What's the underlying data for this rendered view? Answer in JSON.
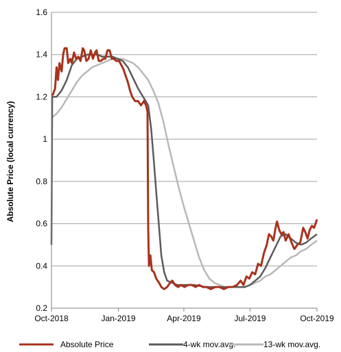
{
  "chart_data": {
    "type": "line",
    "title": "",
    "xlabel": "",
    "ylabel": "Absolute Price (local currency)",
    "ylim": [
      0.2,
      1.6
    ],
    "yticks": [
      "0.2",
      "0.4",
      "0.6",
      "0.8",
      "1",
      "1.2",
      "1.4",
      "1.6"
    ],
    "xlim": [
      "2018-10-01",
      "2019-10-01"
    ],
    "xticks": [
      {
        "label": "Oct-2018",
        "date": "2018-10-01"
      },
      {
        "label": "Jan-2019",
        "date": "2019-01-01"
      },
      {
        "label": "Apr-2019",
        "date": "2019-04-01"
      },
      {
        "label": "Jul-2019",
        "date": "2019-07-01"
      },
      {
        "label": "Oct-2019",
        "date": "2019-10-01"
      }
    ],
    "grid": true,
    "legend_position": "bottom",
    "colors": {
      "absolute": "#a8321c",
      "ma4": "#5a5a5a",
      "ma13": "#b8b8b8",
      "grid": "#a0a0a0"
    },
    "series": [
      {
        "name": "Absolute Price",
        "points": [
          [
            "2018-10-01",
            1.21
          ],
          [
            "2018-10-03",
            1.21
          ],
          [
            "2018-10-06",
            1.24
          ],
          [
            "2018-10-08",
            1.34
          ],
          [
            "2018-10-10",
            1.28
          ],
          [
            "2018-10-12",
            1.36
          ],
          [
            "2018-10-15",
            1.32
          ],
          [
            "2018-10-17",
            1.4
          ],
          [
            "2018-10-19",
            1.43
          ],
          [
            "2018-10-22",
            1.43
          ],
          [
            "2018-10-24",
            1.36
          ],
          [
            "2018-10-27",
            1.38
          ],
          [
            "2018-10-29",
            1.36
          ],
          [
            "2018-11-01",
            1.41
          ],
          [
            "2018-11-04",
            1.38
          ],
          [
            "2018-11-07",
            1.39
          ],
          [
            "2018-11-10",
            1.37
          ],
          [
            "2018-11-13",
            1.43
          ],
          [
            "2018-11-15",
            1.42
          ],
          [
            "2018-11-18",
            1.37
          ],
          [
            "2018-11-21",
            1.38
          ],
          [
            "2018-11-24",
            1.42
          ],
          [
            "2018-11-27",
            1.38
          ],
          [
            "2018-11-30",
            1.41
          ],
          [
            "2018-12-02",
            1.42
          ],
          [
            "2018-12-05",
            1.37
          ],
          [
            "2018-12-08",
            1.37
          ],
          [
            "2018-12-11",
            1.38
          ],
          [
            "2018-12-14",
            1.38
          ],
          [
            "2018-12-17",
            1.42
          ],
          [
            "2018-12-20",
            1.42
          ],
          [
            "2018-12-23",
            1.38
          ],
          [
            "2018-12-26",
            1.38
          ],
          [
            "2018-12-29",
            1.37
          ],
          [
            "2019-01-02",
            1.37
          ],
          [
            "2019-01-05",
            1.35
          ],
          [
            "2019-01-08",
            1.33
          ],
          [
            "2019-01-11",
            1.3
          ],
          [
            "2019-01-14",
            1.27
          ],
          [
            "2019-01-17",
            1.23
          ],
          [
            "2019-01-20",
            1.2
          ],
          [
            "2019-01-24",
            1.18
          ],
          [
            "2019-01-28",
            1.18
          ],
          [
            "2019-02-01",
            1.16
          ],
          [
            "2019-02-05",
            1.18
          ],
          [
            "2019-02-08",
            1.16
          ],
          [
            "2019-02-10",
            1.13
          ],
          [
            "2019-02-11",
            0.58
          ],
          [
            "2019-02-12",
            0.4
          ],
          [
            "2019-02-14",
            0.45
          ],
          [
            "2019-02-16",
            0.38
          ],
          [
            "2019-02-19",
            0.37
          ],
          [
            "2019-02-22",
            0.34
          ],
          [
            "2019-02-26",
            0.32
          ],
          [
            "2019-03-01",
            0.3
          ],
          [
            "2019-03-05",
            0.29
          ],
          [
            "2019-03-09",
            0.3
          ],
          [
            "2019-03-13",
            0.32
          ],
          [
            "2019-03-16",
            0.33
          ],
          [
            "2019-03-20",
            0.31
          ],
          [
            "2019-03-24",
            0.3
          ],
          [
            "2019-03-28",
            0.31
          ],
          [
            "2019-04-02",
            0.3
          ],
          [
            "2019-04-07",
            0.31
          ],
          [
            "2019-04-12",
            0.31
          ],
          [
            "2019-04-17",
            0.3
          ],
          [
            "2019-04-22",
            0.31
          ],
          [
            "2019-04-27",
            0.3
          ],
          [
            "2019-05-02",
            0.3
          ],
          [
            "2019-05-08",
            0.29
          ],
          [
            "2019-05-14",
            0.3
          ],
          [
            "2019-05-20",
            0.3
          ],
          [
            "2019-05-26",
            0.29
          ],
          [
            "2019-06-01",
            0.3
          ],
          [
            "2019-06-07",
            0.3
          ],
          [
            "2019-06-13",
            0.31
          ],
          [
            "2019-06-18",
            0.33
          ],
          [
            "2019-06-22",
            0.31
          ],
          [
            "2019-06-26",
            0.35
          ],
          [
            "2019-06-30",
            0.34
          ],
          [
            "2019-07-04",
            0.37
          ],
          [
            "2019-07-08",
            0.36
          ],
          [
            "2019-07-12",
            0.41
          ],
          [
            "2019-07-16",
            0.4
          ],
          [
            "2019-07-20",
            0.46
          ],
          [
            "2019-07-24",
            0.5
          ],
          [
            "2019-07-27",
            0.55
          ],
          [
            "2019-07-30",
            0.54
          ],
          [
            "2019-08-02",
            0.52
          ],
          [
            "2019-08-05",
            0.58
          ],
          [
            "2019-08-07",
            0.61
          ],
          [
            "2019-08-10",
            0.57
          ],
          [
            "2019-08-13",
            0.55
          ],
          [
            "2019-08-16",
            0.56
          ],
          [
            "2019-08-19",
            0.52
          ],
          [
            "2019-08-23",
            0.55
          ],
          [
            "2019-08-27",
            0.51
          ],
          [
            "2019-08-31",
            0.48
          ],
          [
            "2019-09-04",
            0.5
          ],
          [
            "2019-09-08",
            0.51
          ],
          [
            "2019-09-12",
            0.58
          ],
          [
            "2019-09-15",
            0.56
          ],
          [
            "2019-09-18",
            0.53
          ],
          [
            "2019-09-21",
            0.57
          ],
          [
            "2019-09-24",
            0.59
          ],
          [
            "2019-09-27",
            0.58
          ],
          [
            "2019-10-01",
            0.62
          ]
        ]
      },
      {
        "name": "4-wk mov.avg.",
        "points": [
          [
            "2018-10-01",
            0.5
          ],
          [
            "2018-10-02",
            1.2
          ],
          [
            "2018-10-08",
            1.2
          ],
          [
            "2018-10-15",
            1.23
          ],
          [
            "2018-10-22",
            1.28
          ],
          [
            "2018-10-29",
            1.35
          ],
          [
            "2018-11-05",
            1.38
          ],
          [
            "2018-11-12",
            1.39
          ],
          [
            "2018-11-19",
            1.4
          ],
          [
            "2018-11-26",
            1.4
          ],
          [
            "2018-12-03",
            1.4
          ],
          [
            "2018-12-10",
            1.39
          ],
          [
            "2018-12-17",
            1.39
          ],
          [
            "2018-12-24",
            1.39
          ],
          [
            "2018-12-31",
            1.38
          ],
          [
            "2019-01-07",
            1.37
          ],
          [
            "2019-01-14",
            1.34
          ],
          [
            "2019-01-21",
            1.29
          ],
          [
            "2019-01-28",
            1.24
          ],
          [
            "2019-02-04",
            1.2
          ],
          [
            "2019-02-11",
            1.16
          ],
          [
            "2019-02-15",
            1.05
          ],
          [
            "2019-02-18",
            0.93
          ],
          [
            "2019-02-22",
            0.75
          ],
          [
            "2019-02-26",
            0.58
          ],
          [
            "2019-03-01",
            0.45
          ],
          [
            "2019-03-05",
            0.37
          ],
          [
            "2019-03-09",
            0.33
          ],
          [
            "2019-03-16",
            0.32
          ],
          [
            "2019-03-23",
            0.31
          ],
          [
            "2019-04-01",
            0.31
          ],
          [
            "2019-04-15",
            0.31
          ],
          [
            "2019-05-01",
            0.3
          ],
          [
            "2019-05-15",
            0.3
          ],
          [
            "2019-06-01",
            0.3
          ],
          [
            "2019-06-15",
            0.3
          ],
          [
            "2019-06-24",
            0.3
          ],
          [
            "2019-07-01",
            0.31
          ],
          [
            "2019-07-08",
            0.33
          ],
          [
            "2019-07-15",
            0.35
          ],
          [
            "2019-07-22",
            0.39
          ],
          [
            "2019-07-29",
            0.44
          ],
          [
            "2019-08-05",
            0.49
          ],
          [
            "2019-08-12",
            0.54
          ],
          [
            "2019-08-19",
            0.55
          ],
          [
            "2019-08-26",
            0.53
          ],
          [
            "2019-09-02",
            0.51
          ],
          [
            "2019-09-09",
            0.5
          ],
          [
            "2019-09-16",
            0.51
          ],
          [
            "2019-09-23",
            0.53
          ],
          [
            "2019-10-01",
            0.55
          ]
        ]
      },
      {
        "name": "13-wk mov.avg.",
        "points": [
          [
            "2018-10-01",
            1.1
          ],
          [
            "2018-10-08",
            1.12
          ],
          [
            "2018-10-15",
            1.15
          ],
          [
            "2018-10-22",
            1.19
          ],
          [
            "2018-10-29",
            1.23
          ],
          [
            "2018-11-05",
            1.27
          ],
          [
            "2018-11-12",
            1.3
          ],
          [
            "2018-11-19",
            1.32
          ],
          [
            "2018-11-26",
            1.34
          ],
          [
            "2018-12-03",
            1.35
          ],
          [
            "2018-12-10",
            1.36
          ],
          [
            "2018-12-17",
            1.37
          ],
          [
            "2018-12-24",
            1.38
          ],
          [
            "2018-12-31",
            1.38
          ],
          [
            "2019-01-07",
            1.38
          ],
          [
            "2019-01-14",
            1.37
          ],
          [
            "2019-01-21",
            1.36
          ],
          [
            "2019-01-28",
            1.34
          ],
          [
            "2019-02-04",
            1.31
          ],
          [
            "2019-02-11",
            1.28
          ],
          [
            "2019-02-18",
            1.23
          ],
          [
            "2019-02-25",
            1.17
          ],
          [
            "2019-03-04",
            1.08
          ],
          [
            "2019-03-11",
            0.97
          ],
          [
            "2019-03-18",
            0.87
          ],
          [
            "2019-03-25",
            0.77
          ],
          [
            "2019-04-01",
            0.68
          ],
          [
            "2019-04-08",
            0.6
          ],
          [
            "2019-04-15",
            0.52
          ],
          [
            "2019-04-22",
            0.44
          ],
          [
            "2019-04-29",
            0.38
          ],
          [
            "2019-05-06",
            0.34
          ],
          [
            "2019-05-13",
            0.32
          ],
          [
            "2019-05-20",
            0.31
          ],
          [
            "2019-05-27",
            0.3
          ],
          [
            "2019-06-03",
            0.3
          ],
          [
            "2019-06-10",
            0.3
          ],
          [
            "2019-06-17",
            0.3
          ],
          [
            "2019-06-24",
            0.3
          ],
          [
            "2019-07-01",
            0.31
          ],
          [
            "2019-07-08",
            0.32
          ],
          [
            "2019-07-15",
            0.33
          ],
          [
            "2019-07-22",
            0.35
          ],
          [
            "2019-07-29",
            0.36
          ],
          [
            "2019-08-05",
            0.38
          ],
          [
            "2019-08-12",
            0.4
          ],
          [
            "2019-08-19",
            0.42
          ],
          [
            "2019-08-26",
            0.44
          ],
          [
            "2019-09-02",
            0.45
          ],
          [
            "2019-09-09",
            0.47
          ],
          [
            "2019-09-16",
            0.48
          ],
          [
            "2019-09-23",
            0.5
          ],
          [
            "2019-10-01",
            0.52
          ]
        ]
      }
    ]
  }
}
